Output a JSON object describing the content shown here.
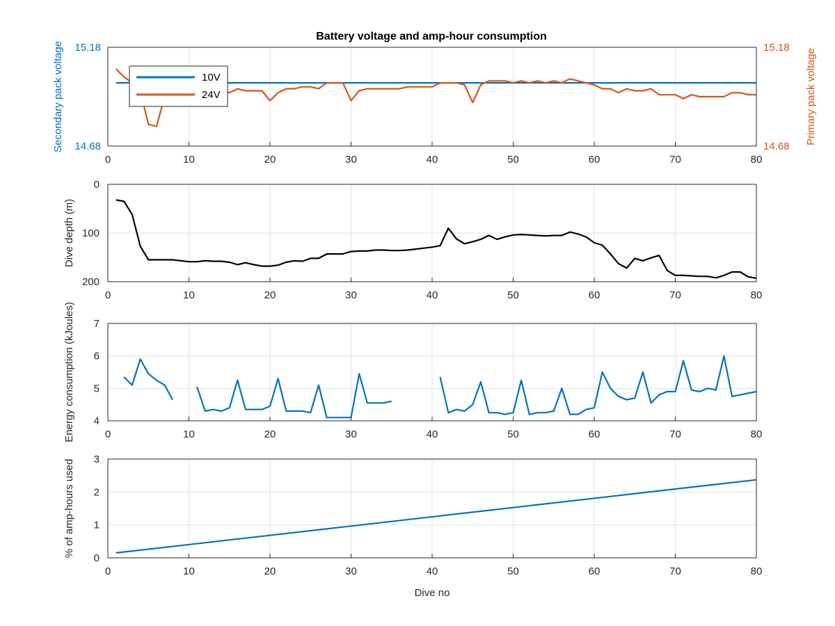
{
  "colors": {
    "blue": "#0072BD",
    "orange": "#D95319",
    "black": "#000000",
    "grid": "#E3E3E3",
    "axis": "#262626"
  },
  "chart_data": [
    {
      "type": "line",
      "title": "Battery voltage and amp-hour consumption",
      "xlabel": "",
      "xlim": [
        0,
        80
      ],
      "xticks": [
        0,
        10,
        20,
        30,
        40,
        50,
        60,
        70,
        80
      ],
      "grid": true,
      "legend": {
        "placement": "top-left",
        "entries": [
          "10V",
          "24V"
        ]
      },
      "left_axis": {
        "label": "Secondary pack voltage",
        "ylim": [
          14.68,
          15.18
        ],
        "ticks": [
          "14.68",
          "15.18"
        ],
        "color": "#0072BD"
      },
      "right_axis": {
        "label": "Primary pack voltage",
        "ylim": [
          14.68,
          15.18
        ],
        "ticks": [
          "14.68",
          "15.18"
        ],
        "color": "#D95319"
      },
      "series": [
        {
          "name": "10V",
          "axis": "left",
          "color": "#0072BD",
          "x": [
            1,
            80
          ],
          "y": [
            15.0,
            15.0
          ]
        },
        {
          "name": "24V",
          "axis": "right",
          "color": "#D95319",
          "x": [
            1,
            2,
            3,
            4,
            5,
            6,
            7,
            8,
            9,
            10,
            11,
            12,
            13,
            14,
            15,
            16,
            17,
            18,
            19,
            20,
            21,
            22,
            23,
            24,
            25,
            26,
            27,
            28,
            29,
            30,
            31,
            32,
            33,
            34,
            35,
            36,
            37,
            38,
            39,
            40,
            41,
            42,
            43,
            44,
            45,
            46,
            47,
            48,
            49,
            50,
            51,
            52,
            53,
            54,
            55,
            56,
            57,
            58,
            59,
            60,
            61,
            62,
            63,
            64,
            65,
            66,
            67,
            68,
            69,
            70,
            71,
            72,
            73,
            74,
            75,
            76,
            77,
            78,
            79,
            80
          ],
          "y": [
            15.07,
            15.03,
            15.0,
            14.96,
            14.79,
            14.78,
            14.93,
            14.95,
            14.96,
            14.96,
            14.96,
            14.96,
            14.97,
            14.96,
            14.95,
            14.97,
            14.96,
            14.96,
            14.96,
            14.91,
            14.95,
            14.97,
            14.97,
            14.98,
            14.98,
            14.97,
            15.0,
            15.0,
            15.0,
            14.91,
            14.96,
            14.97,
            14.97,
            14.97,
            14.97,
            14.97,
            14.98,
            14.98,
            14.98,
            14.98,
            15.0,
            15.0,
            15.0,
            14.99,
            14.9,
            14.99,
            15.01,
            15.01,
            15.01,
            15.0,
            15.01,
            15.0,
            15.01,
            15.0,
            15.01,
            15.0,
            15.02,
            15.01,
            15.0,
            14.99,
            14.97,
            14.97,
            14.95,
            14.97,
            14.96,
            14.96,
            14.97,
            14.94,
            14.94,
            14.94,
            14.92,
            14.94,
            14.93,
            14.93,
            14.93,
            14.93,
            14.95,
            14.95,
            14.94,
            14.94
          ]
        }
      ]
    },
    {
      "type": "line",
      "xlim": [
        0,
        80
      ],
      "xticks": [
        0,
        10,
        20,
        30,
        40,
        50,
        60,
        70,
        80
      ],
      "ylabel": "Dive depth (m)",
      "ylim": [
        0,
        200
      ],
      "yreverse": true,
      "yticks": [
        0,
        100,
        200
      ],
      "grid": true,
      "series": [
        {
          "color": "#000000",
          "x": [
            1,
            2,
            3,
            4,
            5,
            6,
            7,
            8,
            9,
            10,
            11,
            12,
            13,
            14,
            15,
            16,
            17,
            18,
            19,
            20,
            21,
            22,
            23,
            24,
            25,
            26,
            27,
            28,
            29,
            30,
            31,
            32,
            33,
            34,
            35,
            36,
            37,
            38,
            39,
            40,
            41,
            42,
            43,
            44,
            45,
            46,
            47,
            48,
            49,
            50,
            51,
            52,
            53,
            54,
            55,
            56,
            57,
            58,
            59,
            60,
            61,
            62,
            63,
            64,
            65,
            66,
            67,
            68,
            69,
            70,
            71,
            72,
            73,
            74,
            75,
            76,
            77,
            78,
            79,
            80
          ],
          "y": [
            32,
            35,
            62,
            127,
            155,
            155,
            155,
            155,
            157,
            159,
            159,
            157,
            158,
            158,
            160,
            165,
            161,
            165,
            168,
            168,
            166,
            160,
            157,
            158,
            152,
            152,
            143,
            143,
            143,
            138,
            137,
            137,
            135,
            135,
            136,
            136,
            135,
            133,
            131,
            129,
            126,
            90,
            112,
            122,
            118,
            113,
            105,
            113,
            108,
            104,
            103,
            104,
            105,
            106,
            105,
            105,
            98,
            102,
            108,
            120,
            125,
            143,
            163,
            172,
            152,
            157,
            151,
            146,
            177,
            187,
            187,
            188,
            189,
            189,
            192,
            187,
            180,
            180,
            190,
            193
          ]
        }
      ]
    },
    {
      "type": "line",
      "xlim": [
        0,
        80
      ],
      "xticks": [
        0,
        10,
        20,
        30,
        40,
        50,
        60,
        70,
        80
      ],
      "ylabel": "Energy consumption (kJoules)",
      "ylim": [
        4,
        7
      ],
      "yticks": [
        4,
        5,
        6,
        7
      ],
      "grid": true,
      "series": [
        {
          "color": "#0072BD",
          "x": [
            2,
            3,
            4,
            5,
            6,
            7,
            8,
            null,
            11,
            12,
            13,
            14,
            15,
            16,
            17,
            18,
            19,
            20,
            21,
            22,
            23,
            24,
            25,
            26,
            27,
            28,
            29,
            30,
            31,
            32,
            33,
            34,
            35,
            null,
            41,
            42,
            43,
            44,
            45,
            46,
            47,
            48,
            49,
            50,
            51,
            52,
            53,
            54,
            55,
            56,
            57,
            58,
            59,
            60,
            61,
            62,
            63,
            64,
            65,
            66,
            67,
            68,
            69,
            70,
            71,
            72,
            73,
            74,
            75,
            76,
            77,
            78,
            79,
            80
          ],
          "y": [
            5.35,
            5.1,
            5.9,
            5.45,
            5.25,
            5.1,
            4.65,
            null,
            5.05,
            4.3,
            4.35,
            4.3,
            4.4,
            5.25,
            4.35,
            4.35,
            4.35,
            4.45,
            5.3,
            4.3,
            4.3,
            4.3,
            4.25,
            5.1,
            4.1,
            4.1,
            4.1,
            4.1,
            5.45,
            4.55,
            4.55,
            4.55,
            4.6,
            null,
            5.35,
            4.25,
            4.35,
            4.3,
            4.5,
            5.2,
            4.25,
            4.25,
            4.2,
            4.25,
            5.25,
            4.2,
            4.25,
            4.25,
            4.3,
            5.0,
            4.2,
            4.2,
            4.35,
            4.4,
            5.5,
            5.0,
            4.75,
            4.65,
            4.7,
            5.5,
            4.55,
            4.8,
            4.9,
            4.9,
            5.85,
            4.95,
            4.9,
            5.0,
            4.95,
            6.0,
            4.75,
            4.8,
            4.85,
            4.9
          ]
        }
      ]
    },
    {
      "type": "line",
      "xlabel": "Dive no",
      "xlim": [
        0,
        80
      ],
      "xticks": [
        0,
        10,
        20,
        30,
        40,
        50,
        60,
        70,
        80
      ],
      "ylabel": "% of amp-hours used",
      "ylim": [
        0,
        3
      ],
      "yticks": [
        0,
        1,
        2,
        3
      ],
      "grid": true,
      "series": [
        {
          "color": "#0072BD",
          "x": [
            1,
            80
          ],
          "y": [
            0.15,
            2.37
          ]
        }
      ]
    }
  ]
}
